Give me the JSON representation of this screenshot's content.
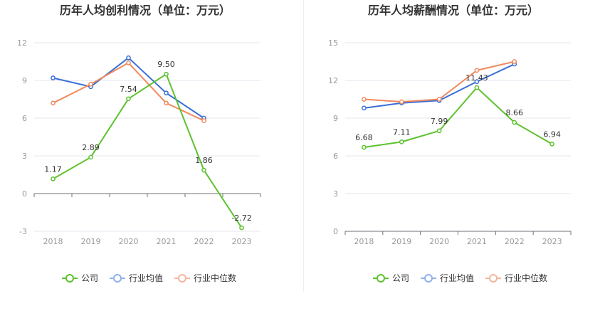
{
  "colors": {
    "company": "#5dc22f",
    "industry_avg": "#3a6fd8",
    "industry_median": "#f08a5d",
    "legend_avg": "#8fb0ee",
    "legend_median": "#f5b59c",
    "axis": "#999999",
    "grid": "#e4e6ef",
    "title": "#333333"
  },
  "chart_data": [
    {
      "type": "line",
      "title": "历年人均创利情况（单位：万元）",
      "categories": [
        "2018",
        "2019",
        "2020",
        "2021",
        "2022",
        "2023"
      ],
      "ylim": [
        -3,
        12
      ],
      "yticks": [
        -3,
        0,
        3,
        6,
        9,
        12
      ],
      "ytick_labels": [
        "-3",
        "0",
        "3",
        "6",
        "9",
        "12"
      ],
      "series": [
        {
          "name": "公司",
          "key": "company",
          "values": [
            1.17,
            2.89,
            7.54,
            9.5,
            1.86,
            -2.72
          ],
          "labels": [
            "1.17",
            "2.89",
            "7.54",
            "9.50",
            "1.86",
            "-2.72"
          ]
        },
        {
          "name": "行业均值",
          "key": "industry_avg",
          "values": [
            9.2,
            8.5,
            10.8,
            8.0,
            6.0,
            null
          ]
        },
        {
          "name": "行业中位数",
          "key": "industry_median",
          "values": [
            7.2,
            8.7,
            10.4,
            7.2,
            5.8,
            null
          ]
        }
      ]
    },
    {
      "type": "line",
      "title": "历年人均薪酬情况（单位：万元）",
      "categories": [
        "2018",
        "2019",
        "2020",
        "2021",
        "2022",
        "2023"
      ],
      "ylim": [
        0,
        15
      ],
      "yticks": [
        0,
        3,
        6,
        9,
        12,
        15
      ],
      "ytick_labels": [
        "0",
        "3",
        "6",
        "9",
        "12",
        "15"
      ],
      "series": [
        {
          "name": "公司",
          "key": "company",
          "values": [
            6.68,
            7.11,
            7.99,
            11.43,
            8.66,
            6.94
          ],
          "labels": [
            "6.68",
            "7.11",
            "7.99",
            "11.43",
            "8.66",
            "6.94"
          ]
        },
        {
          "name": "行业均值",
          "key": "industry_avg",
          "values": [
            9.8,
            10.2,
            10.4,
            11.9,
            13.3,
            null
          ]
        },
        {
          "name": "行业中位数",
          "key": "industry_median",
          "values": [
            10.5,
            10.3,
            10.5,
            12.8,
            13.5,
            null
          ]
        }
      ]
    }
  ]
}
